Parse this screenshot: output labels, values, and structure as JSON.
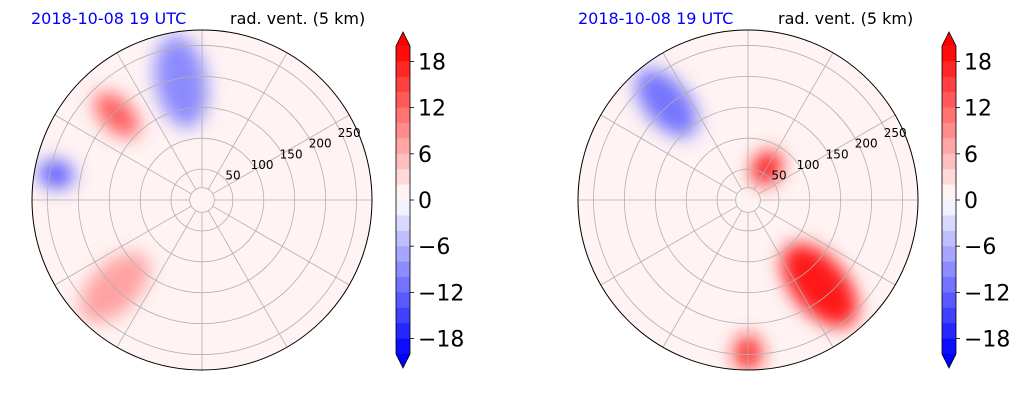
{
  "panels": [
    {
      "time_label": "2018-10-08 19 UTC",
      "var_label": "rad. vent. (5 km)"
    },
    {
      "time_label": "2018-10-08 19 UTC",
      "var_label": "rad. vent. (5 km)"
    }
  ],
  "chart_data": [
    {
      "type": "heatmap",
      "projection": "polar",
      "title": "rad. vent. (5 km)",
      "subtitle": "2018-10-08 19 UTC",
      "radial_ticks": [
        "50",
        "100",
        "150",
        "200",
        "250"
      ],
      "radial_tick_values": [
        50,
        100,
        150,
        200,
        250
      ],
      "radial_range": [
        0,
        275
      ],
      "azimuth_grid_deg": [
        0,
        30,
        60,
        90,
        120,
        150,
        180,
        210,
        240,
        270,
        300,
        330
      ],
      "grid": true,
      "colorbar": {
        "ticks": [
          "18",
          "12",
          "6",
          "0",
          "−6",
          "−12",
          "−18"
        ],
        "tick_values": [
          18,
          12,
          6,
          0,
          -6,
          -12,
          -18
        ],
        "range": [
          -20,
          20
        ],
        "colormap": "bwr",
        "extend": "both"
      },
      "colors": {
        "positive": "#ff0000",
        "negative": "#0000ff",
        "neutral": "#ffffff"
      },
      "features": [
        {
          "name": "positive",
          "azimuth_deg": 225,
          "range_km": [
            130,
            270
          ],
          "value": 8
        },
        {
          "name": "positive",
          "azimuth_deg": 315,
          "range_km": [
            150,
            240
          ],
          "value": 14
        },
        {
          "name": "negative",
          "azimuth_deg": 350,
          "range_km": [
            120,
            270
          ],
          "value": -10
        },
        {
          "name": "negative",
          "azimuth_deg": 280,
          "range_km": [
            220,
            260
          ],
          "value": -14
        }
      ]
    },
    {
      "type": "heatmap",
      "projection": "polar",
      "title": "rad. vent. (5 km)",
      "subtitle": "2018-10-08 19 UTC",
      "radial_ticks": [
        "50",
        "100",
        "150",
        "200",
        "250"
      ],
      "radial_tick_values": [
        50,
        100,
        150,
        200,
        250
      ],
      "radial_range": [
        0,
        275
      ],
      "azimuth_grid_deg": [
        0,
        30,
        60,
        90,
        120,
        150,
        180,
        210,
        240,
        270,
        300,
        330
      ],
      "grid": true,
      "colorbar": {
        "ticks": [
          "18",
          "12",
          "6",
          "0",
          "−6",
          "−12",
          "−18"
        ],
        "tick_values": [
          18,
          12,
          6,
          0,
          -6,
          -12,
          -18
        ],
        "range": [
          -20,
          20
        ],
        "colormap": "bwr",
        "extend": "both"
      },
      "colors": {
        "positive": "#ff0000",
        "negative": "#0000ff",
        "neutral": "#ffffff"
      },
      "features": [
        {
          "name": "negative",
          "azimuth_deg": 320,
          "range_km": [
            140,
            270
          ],
          "value": -12
        },
        {
          "name": "positive",
          "azimuth_deg": 30,
          "range_km": [
            40,
            80
          ],
          "value": 20
        },
        {
          "name": "positive",
          "azimuth_deg": 140,
          "range_km": [
            100,
            260
          ],
          "value": 20
        },
        {
          "name": "positive",
          "azimuth_deg": 180,
          "range_km": [
            220,
            275
          ],
          "value": 18
        }
      ]
    }
  ]
}
